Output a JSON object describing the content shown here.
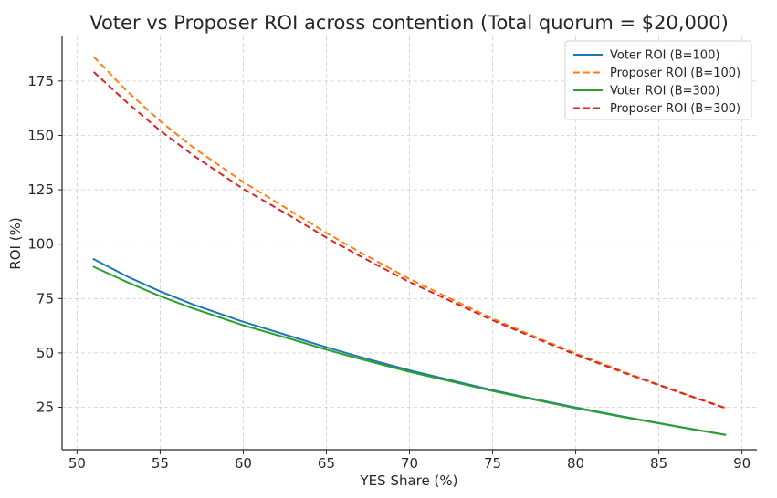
{
  "chart_data": {
    "type": "line",
    "title": "Voter vs Proposer ROI across contention (Total quorum = $20,000)",
    "xlabel": "YES Share (%)",
    "ylabel": "ROI (%)",
    "xlim": [
      49.1,
      90.9
    ],
    "ylim": [
      5.5,
      195.5
    ],
    "xticks": [
      50,
      55,
      60,
      65,
      70,
      75,
      80,
      85,
      90
    ],
    "yticks": [
      25,
      50,
      75,
      100,
      125,
      150,
      175
    ],
    "grid": true,
    "legend_position": "top-right",
    "x": [
      51,
      53,
      55,
      57,
      60,
      63,
      65,
      67,
      70,
      73,
      75,
      77,
      80,
      83,
      85,
      87,
      89
    ],
    "series": [
      {
        "name": "Voter ROI (B=100)",
        "color": "#1f77b4",
        "style": "solid",
        "values": [
          93.1,
          85.2,
          78.3,
          72.2,
          64.3,
          57.3,
          52.6,
          48.2,
          42.0,
          36.5,
          32.9,
          29.6,
          24.9,
          20.5,
          17.7,
          15.0,
          12.4
        ]
      },
      {
        "name": "Proposer ROI (B=100)",
        "color": "#ff7f0e",
        "style": "dashed",
        "values": [
          186.2,
          170.4,
          156.6,
          144.4,
          128.6,
          114.6,
          105.2,
          96.4,
          84.0,
          73.0,
          65.8,
          59.2,
          49.8,
          41.0,
          35.4,
          30.0,
          24.8
        ]
      },
      {
        "name": "Voter ROI (B=300)",
        "color": "#2ca02c",
        "style": "solid",
        "values": [
          89.6,
          82.6,
          76.1,
          70.4,
          62.7,
          56.1,
          51.5,
          47.3,
          41.3,
          36.0,
          32.5,
          29.3,
          24.6,
          20.3,
          17.6,
          14.9,
          12.3
        ]
      },
      {
        "name": "Proposer ROI (B=300)",
        "color": "#d62728",
        "style": "dashed",
        "values": [
          179.2,
          165.2,
          152.2,
          140.8,
          125.4,
          112.2,
          103.0,
          94.6,
          82.6,
          72.0,
          65.0,
          58.6,
          49.2,
          40.6,
          35.2,
          29.8,
          24.6
        ]
      }
    ]
  }
}
